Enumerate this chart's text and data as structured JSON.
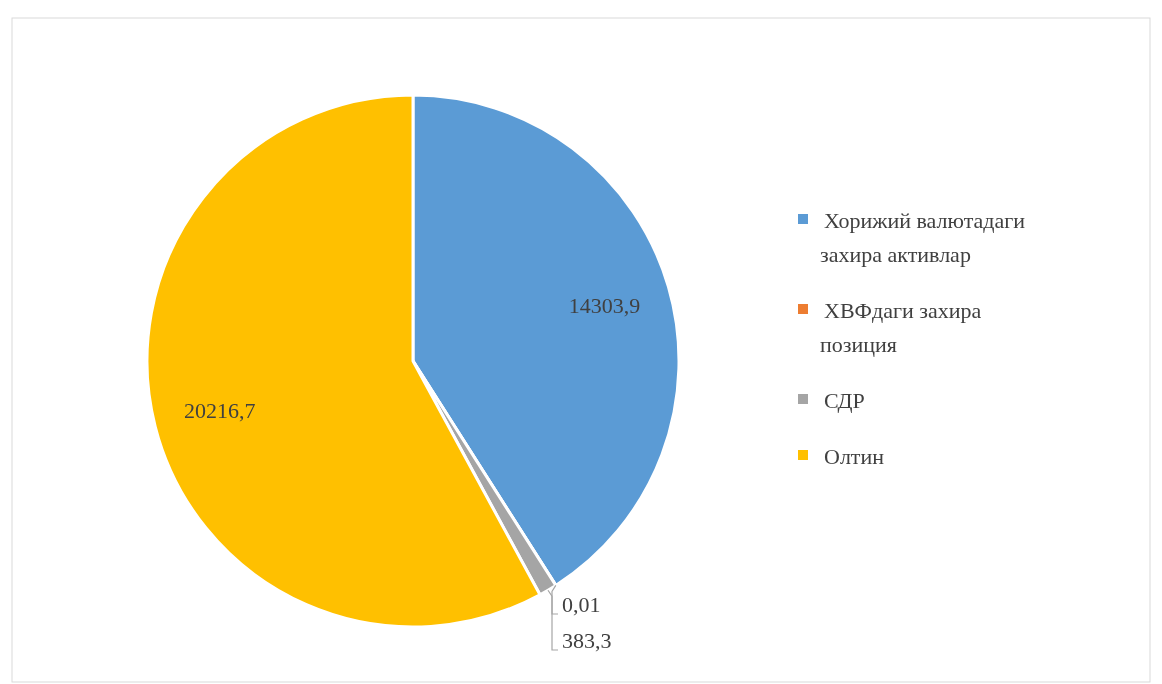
{
  "chart_data": {
    "type": "pie",
    "categories": [
      "Хорижий валютадаги захира активлар",
      "ХВФдаги захира позиция",
      "СДР",
      "Олтин"
    ],
    "values": [
      14303.9,
      0.01,
      383.3,
      20216.7
    ],
    "colors": [
      "#5b9bd5",
      "#ed7d31",
      "#a5a5a5",
      "#ffc000"
    ],
    "value_labels": [
      "14303,9",
      "0,01",
      "383,3",
      "20216,7"
    ],
    "legend": "right"
  }
}
